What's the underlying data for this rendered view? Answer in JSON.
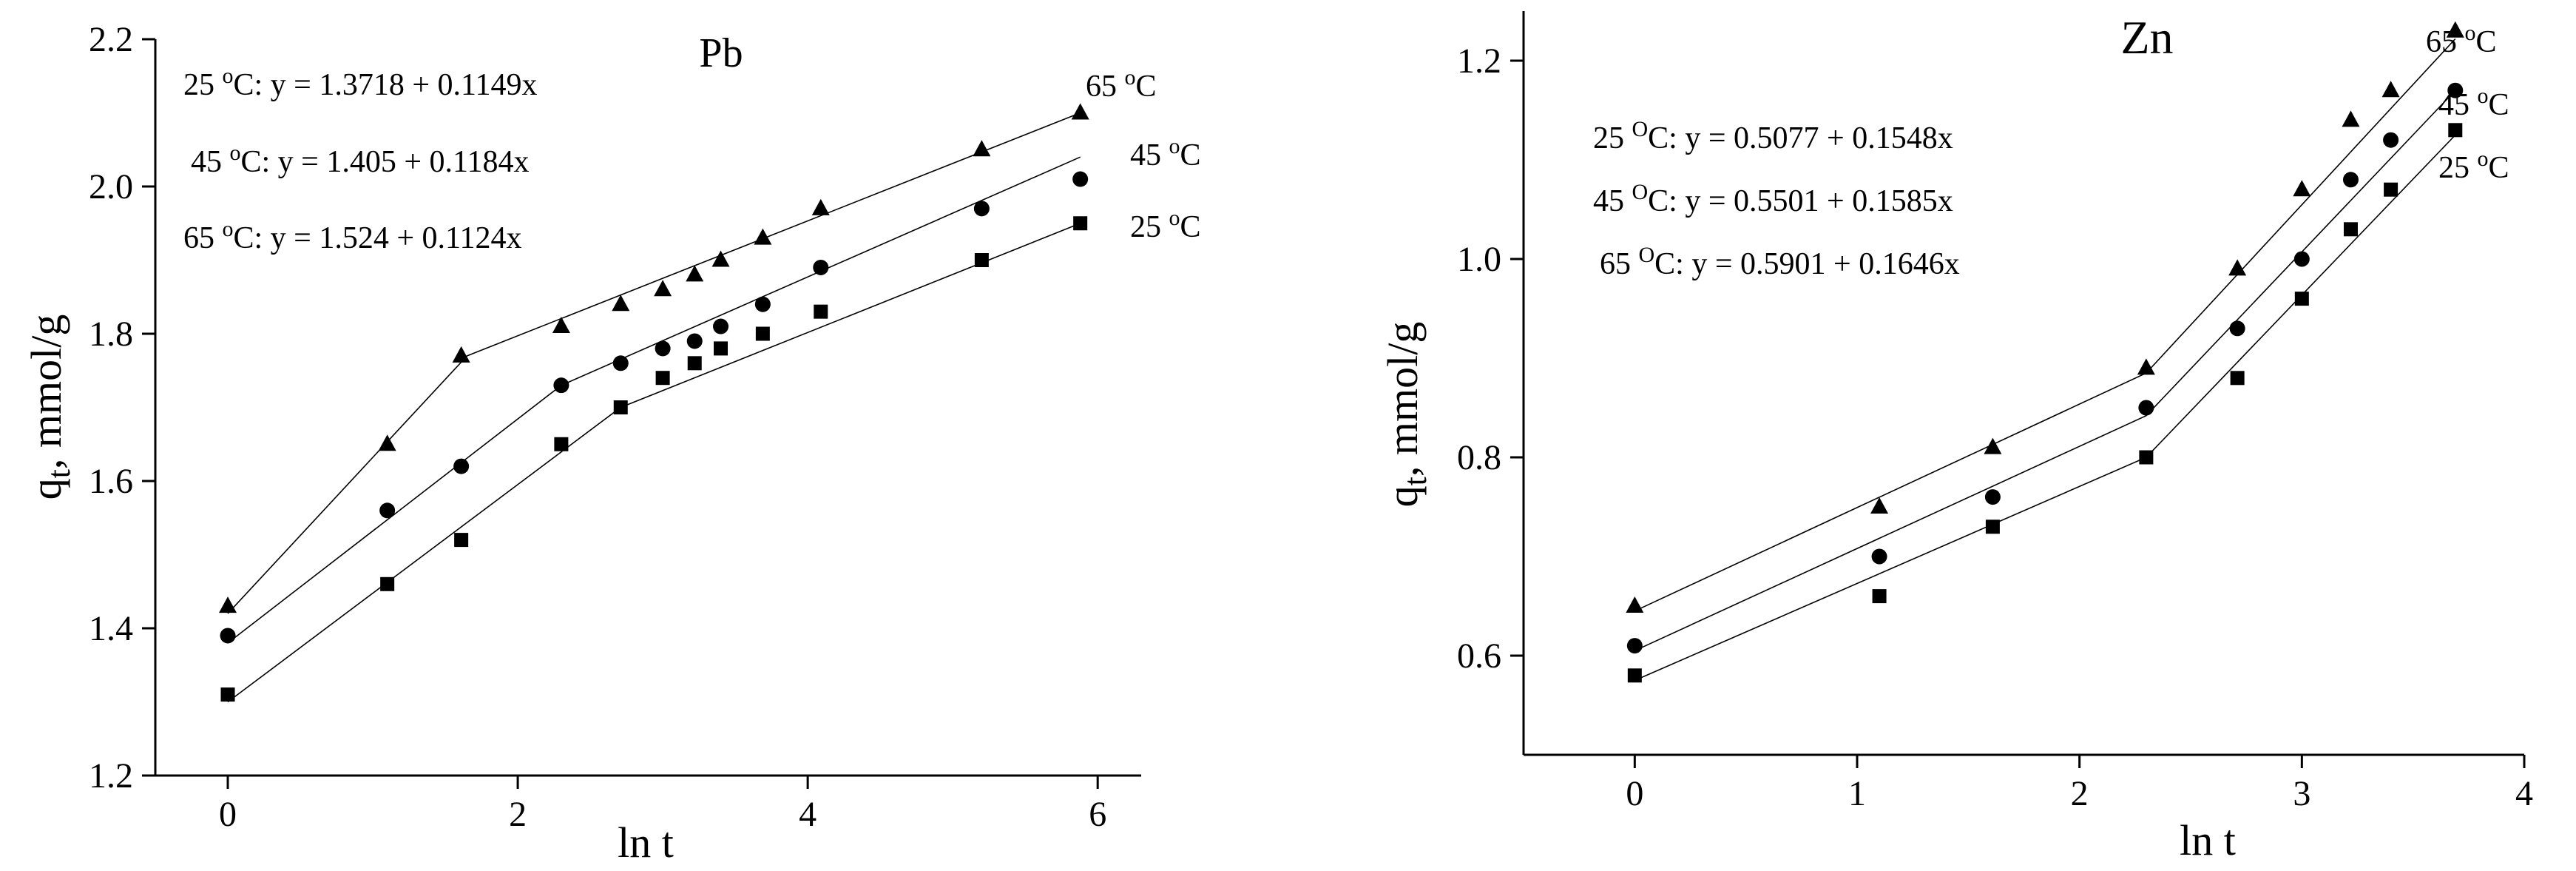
{
  "chart_data": [
    {
      "type": "scatter",
      "title": "Pb",
      "xlabel": "ln t",
      "ylabel": "q",
      "ylabel_sub": "t",
      "ylabel_rest": ", mmol/g",
      "xlim": [
        -0.5,
        6.3
      ],
      "ylim": [
        1.2,
        2.2
      ],
      "xticks": [
        0,
        2,
        4,
        6
      ],
      "yticks": [
        1.2,
        1.4,
        1.6,
        1.8,
        2.0,
        2.2
      ],
      "tick_labels_x": [
        "0",
        "2",
        "4",
        "6"
      ],
      "tick_labels_y": [
        "1.2",
        "1.4",
        "1.6",
        "1.8",
        "2.0",
        "2.2"
      ],
      "grid": false,
      "equations": [
        {
          "pre": "25 ",
          "sup": "o",
          "post": "C: y = 1.3718 + 0.1149x"
        },
        {
          "pre": "45 ",
          "sup": "o",
          "post": "C: y = 1.405 + 0.1184x"
        },
        {
          "pre": "65 ",
          "sup": "o",
          "post": "C: y = 1.524 + 0.1124x"
        }
      ],
      "series": [
        {
          "marker": "square",
          "label": {
            "pre": "25 ",
            "sup": "o",
            "post": "C"
          },
          "x": [
            0,
            1.1,
            1.61,
            2.3,
            2.71,
            3.0,
            3.22,
            3.4,
            3.69,
            4.09,
            5.2,
            5.88
          ],
          "y": [
            1.31,
            1.46,
            1.52,
            1.65,
            1.7,
            1.74,
            1.76,
            1.78,
            1.8,
            1.83,
            1.9,
            1.95
          ],
          "fit": [
            [
              0,
              1.3
            ],
            [
              2.71,
              1.7
            ],
            [
              5.88,
              1.95
            ]
          ]
        },
        {
          "marker": "circle",
          "label": {
            "pre": "45 ",
            "sup": "o",
            "post": "C"
          },
          "x": [
            0,
            1.1,
            1.61,
            2.3,
            2.71,
            3.0,
            3.22,
            3.4,
            3.69,
            4.09,
            5.2,
            5.88
          ],
          "y": [
            1.39,
            1.56,
            1.62,
            1.73,
            1.76,
            1.78,
            1.79,
            1.81,
            1.84,
            1.89,
            1.97,
            2.01
          ],
          "fit": [
            [
              0,
              1.38
            ],
            [
              2.3,
              1.73
            ],
            [
              5.88,
              2.04
            ]
          ]
        },
        {
          "marker": "triangle",
          "label": {
            "pre": "65 ",
            "sup": "o",
            "post": "C"
          },
          "x": [
            0,
            1.1,
            1.61,
            2.3,
            2.71,
            3.0,
            3.22,
            3.4,
            3.69,
            4.09,
            5.2,
            5.88
          ],
          "y": [
            1.43,
            1.65,
            1.77,
            1.81,
            1.84,
            1.86,
            1.88,
            1.9,
            1.93,
            1.97,
            2.05,
            2.1
          ],
          "fit": [
            [
              0,
              1.42
            ],
            [
              1.65,
              1.77
            ],
            [
              5.88,
              2.1
            ]
          ]
        }
      ]
    },
    {
      "type": "scatter",
      "title": "Zn",
      "xlabel": "ln t",
      "ylabel": "q",
      "ylabel_sub": "t",
      "ylabel_rest": ", mmol/g",
      "xlim": [
        -0.5,
        4.0
      ],
      "ylim": [
        0.5,
        1.25
      ],
      "xticks": [
        0,
        1,
        2,
        3,
        4
      ],
      "yticks": [
        0.6,
        0.8,
        1.0,
        1.2
      ],
      "tick_labels_x": [
        "0",
        "1",
        "2",
        "3",
        "4"
      ],
      "tick_labels_y": [
        "0.6",
        "0.8",
        "1.0",
        "1.2"
      ],
      "grid": false,
      "equations": [
        {
          "pre": "25 ",
          "sup": "O",
          "post": "C: y = 0.5077 + 0.1548x"
        },
        {
          "pre": "45 ",
          "sup": "O",
          "post": "C: y = 0.5501 + 0.1585x"
        },
        {
          "pre": "65 ",
          "sup": "O",
          "post": "C: y = 0.5901 + 0.1646x"
        }
      ],
      "series": [
        {
          "marker": "square",
          "label": {
            "pre": "25 ",
            "sup": "o",
            "post": "C"
          },
          "x": [
            0,
            1.1,
            1.61,
            2.3,
            2.71,
            3.0,
            3.22,
            3.4,
            3.69
          ],
          "y": [
            0.58,
            0.66,
            0.73,
            0.8,
            0.88,
            0.96,
            1.03,
            1.07,
            1.13
          ],
          "fit": [
            [
              0,
              0.575
            ],
            [
              2.3,
              0.8
            ],
            [
              3.69,
              1.125
            ]
          ]
        },
        {
          "marker": "circle",
          "label": {
            "pre": "45 ",
            "sup": "o",
            "post": "C"
          },
          "x": [
            0,
            1.1,
            1.61,
            2.3,
            2.71,
            3.0,
            3.22,
            3.4,
            3.69
          ],
          "y": [
            0.61,
            0.7,
            0.76,
            0.85,
            0.93,
            1.0,
            1.08,
            1.12,
            1.17
          ],
          "fit": [
            [
              0,
              0.605
            ],
            [
              2.3,
              0.842
            ],
            [
              3.69,
              1.17
            ]
          ]
        },
        {
          "marker": "triangle",
          "label": {
            "pre": "65 ",
            "sup": "o",
            "post": "C"
          },
          "x": [
            0,
            1.1,
            1.61,
            2.3,
            2.71,
            3.0,
            3.22,
            3.4,
            3.69
          ],
          "y": [
            0.65,
            0.75,
            0.81,
            0.89,
            0.99,
            1.07,
            1.14,
            1.17,
            1.23
          ],
          "fit": [
            [
              0,
              0.645
            ],
            [
              2.3,
              0.885
            ],
            [
              3.69,
              1.222
            ]
          ]
        }
      ]
    }
  ]
}
